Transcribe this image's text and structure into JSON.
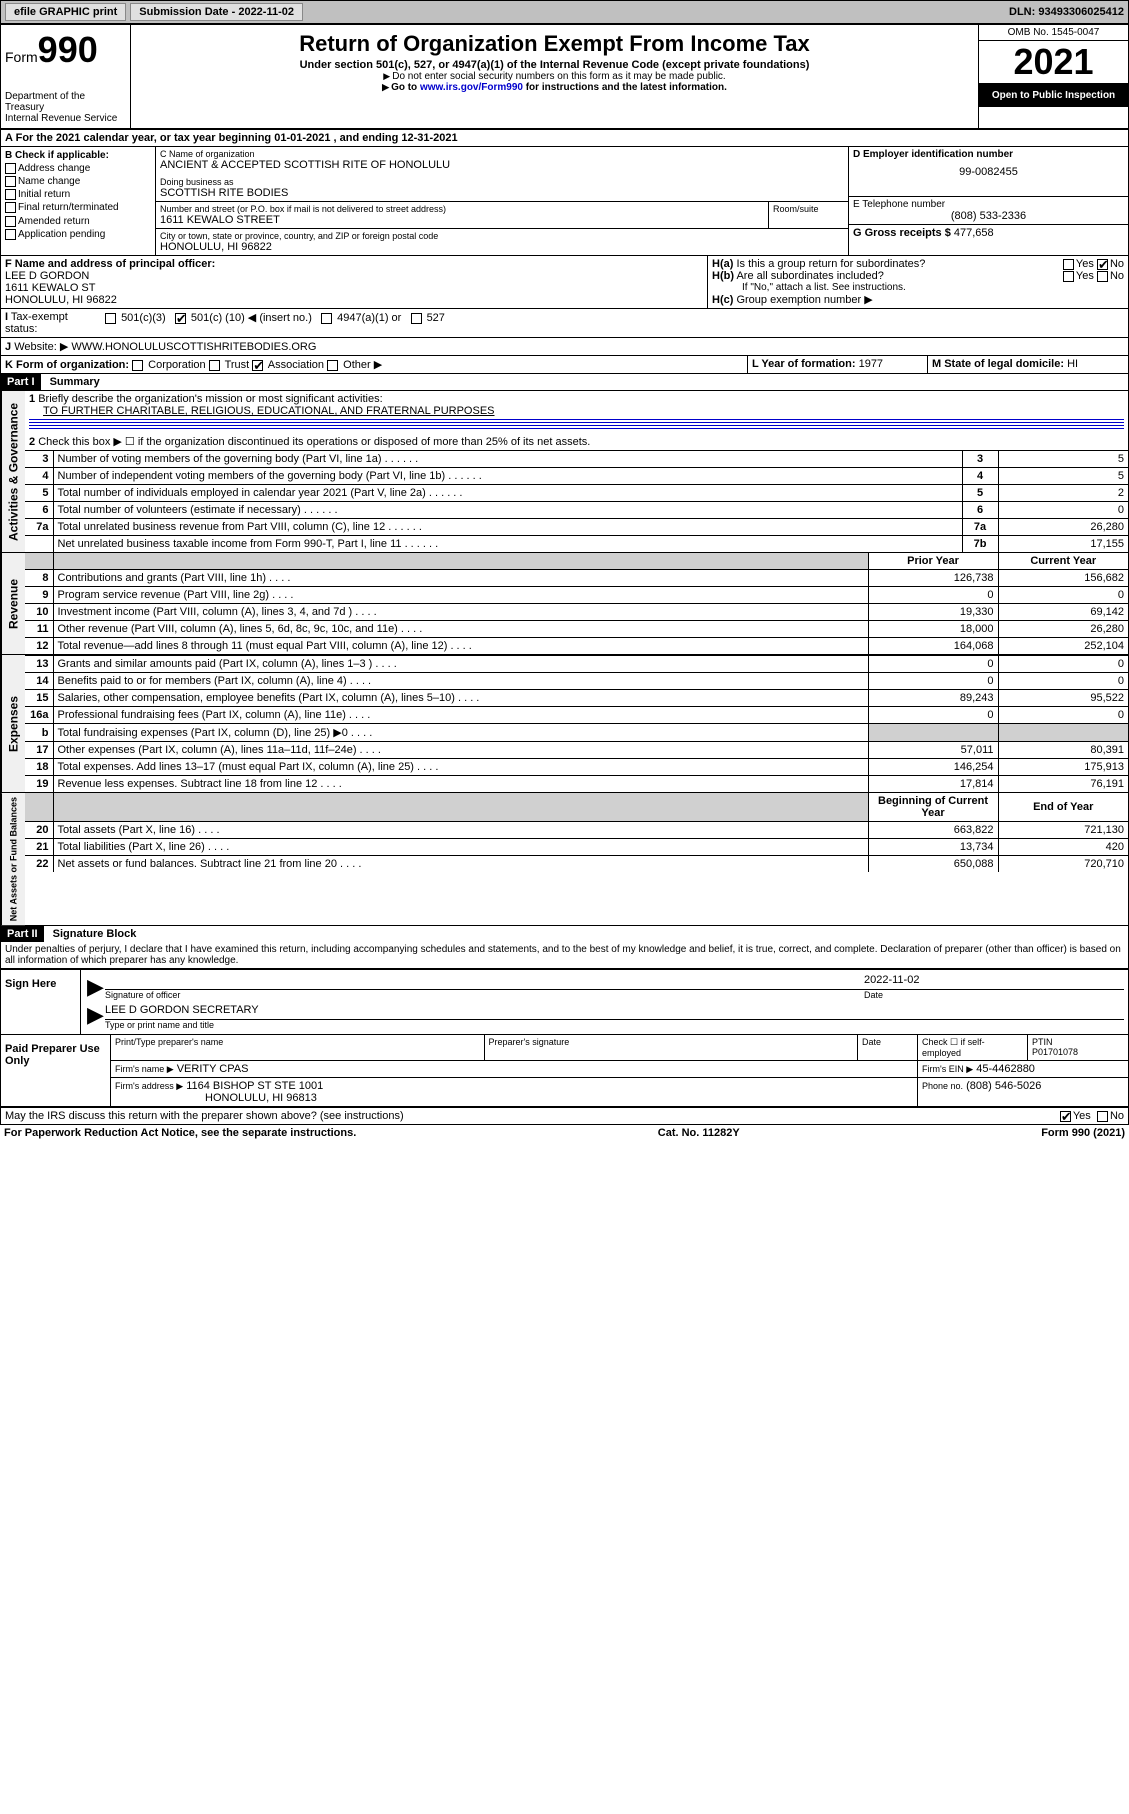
{
  "top": {
    "efile": "efile GRAPHIC print",
    "subdate_label": "Submission Date - ",
    "subdate": "2022-11-02",
    "dln_label": "DLN: ",
    "dln": "93493306025412"
  },
  "header": {
    "form_word": "Form",
    "form_num": "990",
    "dept": "Department of the Treasury",
    "irs": "Internal Revenue Service",
    "title": "Return of Organization Exempt From Income Tax",
    "sub": "Under section 501(c), 527, or 4947(a)(1) of the Internal Revenue Code (except private foundations)",
    "note1": "Do not enter social security numbers on this form as it may be made public.",
    "note2_pre": "Go to ",
    "note2_link": "www.irs.gov/Form990",
    "note2_post": " for instructions and the latest information.",
    "omb": "OMB No. 1545-0047",
    "year": "2021",
    "open": "Open to Public Inspection"
  },
  "A": {
    "text": "For the 2021 calendar year, or tax year beginning ",
    "begin": "01-01-2021",
    "mid": " , and ending ",
    "end": "12-31-2021"
  },
  "B": {
    "label": "B Check if applicable:",
    "items": [
      "Address change",
      "Name change",
      "Initial return",
      "Final return/terminated",
      "Amended return",
      "Application pending"
    ]
  },
  "C": {
    "label": "C Name of organization",
    "name": "ANCIENT & ACCEPTED SCOTTISH RITE OF HONOLULU",
    "dba_label": "Doing business as",
    "dba": "SCOTTISH RITE BODIES",
    "street_label": "Number and street (or P.O. box if mail is not delivered to street address)",
    "street": "1611 KEWALO STREET",
    "room_label": "Room/suite",
    "city_label": "City or town, state or province, country, and ZIP or foreign postal code",
    "city": "HONOLULU, HI  96822"
  },
  "D": {
    "label": "D Employer identification number",
    "value": "99-0082455"
  },
  "E": {
    "label": "E Telephone number",
    "value": "(808) 533-2336"
  },
  "G": {
    "label": "G Gross receipts $",
    "value": "477,658"
  },
  "F": {
    "label": "F Name and address of principal officer:",
    "name": "LEE D GORDON",
    "street": "1611 KEWALO ST",
    "city": "HONOLULU, HI  96822"
  },
  "H": {
    "a": "Is this a group return for subordinates?",
    "a_yes": "Yes",
    "a_no": "No",
    "b": "Are all subordinates included?",
    "b_note": "If \"No,\" attach a list. See instructions.",
    "c": "Group exemption number ▶"
  },
  "I": {
    "label": "Tax-exempt status:",
    "o1": "501(c)(3)",
    "o2_pre": "501(c) (",
    "o2_num": "10",
    "o2_post": ") ◀ (insert no.)",
    "o3": "4947(a)(1) or",
    "o4": "527"
  },
  "J": {
    "label": "Website: ▶",
    "value": "WWW.HONOLULUSCOTTISHRITEBODIES.ORG"
  },
  "K": {
    "label": "K Form of organization:",
    "o1": "Corporation",
    "o2": "Trust",
    "o3": "Association",
    "o4": "Other ▶"
  },
  "L": {
    "label": "L Year of formation:",
    "value": "1977"
  },
  "M": {
    "label": "M State of legal domicile:",
    "value": "HI"
  },
  "partI": {
    "header": "Part I",
    "title": "Summary",
    "q1": "Briefly describe the organization's mission or most significant activities:",
    "q1_val": "TO FURTHER CHARITABLE, RELIGIOUS, EDUCATIONAL, AND FRATERNAL PURPOSES",
    "q2": "Check this box ▶ ☐  if the organization discontinued its operations or disposed of more than 25% of its net assets."
  },
  "gov_rows": [
    {
      "n": "3",
      "desc": "Number of voting members of the governing body (Part VI, line 1a)",
      "box": "3",
      "val": "5"
    },
    {
      "n": "4",
      "desc": "Number of independent voting members of the governing body (Part VI, line 1b)",
      "box": "4",
      "val": "5"
    },
    {
      "n": "5",
      "desc": "Total number of individuals employed in calendar year 2021 (Part V, line 2a)",
      "box": "5",
      "val": "2"
    },
    {
      "n": "6",
      "desc": "Total number of volunteers (estimate if necessary)",
      "box": "6",
      "val": "0"
    },
    {
      "n": "7a",
      "desc": "Total unrelated business revenue from Part VIII, column (C), line 12",
      "box": "7a",
      "val": "26,280"
    },
    {
      "n": "",
      "desc": "Net unrelated business taxable income from Form 990-T, Part I, line 11",
      "box": "7b",
      "val": "17,155"
    }
  ],
  "two_col_header": {
    "prior": "Prior Year",
    "current": "Current Year"
  },
  "rev_rows": [
    {
      "n": "8",
      "desc": "Contributions and grants (Part VIII, line 1h)",
      "prior": "126,738",
      "cur": "156,682"
    },
    {
      "n": "9",
      "desc": "Program service revenue (Part VIII, line 2g)",
      "prior": "0",
      "cur": "0"
    },
    {
      "n": "10",
      "desc": "Investment income (Part VIII, column (A), lines 3, 4, and 7d )",
      "prior": "19,330",
      "cur": "69,142"
    },
    {
      "n": "11",
      "desc": "Other revenue (Part VIII, column (A), lines 5, 6d, 8c, 9c, 10c, and 11e)",
      "prior": "18,000",
      "cur": "26,280"
    },
    {
      "n": "12",
      "desc": "Total revenue—add lines 8 through 11 (must equal Part VIII, column (A), line 12)",
      "prior": "164,068",
      "cur": "252,104"
    }
  ],
  "exp_rows": [
    {
      "n": "13",
      "desc": "Grants and similar amounts paid (Part IX, column (A), lines 1–3 )",
      "prior": "0",
      "cur": "0"
    },
    {
      "n": "14",
      "desc": "Benefits paid to or for members (Part IX, column (A), line 4)",
      "prior": "0",
      "cur": "0"
    },
    {
      "n": "15",
      "desc": "Salaries, other compensation, employee benefits (Part IX, column (A), lines 5–10)",
      "prior": "89,243",
      "cur": "95,522"
    },
    {
      "n": "16a",
      "desc": "Professional fundraising fees (Part IX, column (A), line 11e)",
      "prior": "0",
      "cur": "0"
    },
    {
      "n": "b",
      "desc": "Total fundraising expenses (Part IX, column (D), line 25) ▶0",
      "prior": "shade",
      "cur": "shade"
    },
    {
      "n": "17",
      "desc": "Other expenses (Part IX, column (A), lines 11a–11d, 11f–24e)",
      "prior": "57,011",
      "cur": "80,391"
    },
    {
      "n": "18",
      "desc": "Total expenses. Add lines 13–17 (must equal Part IX, column (A), line 25)",
      "prior": "146,254",
      "cur": "175,913"
    },
    {
      "n": "19",
      "desc": "Revenue less expenses. Subtract line 18 from line 12",
      "prior": "17,814",
      "cur": "76,191"
    }
  ],
  "net_header": {
    "begin": "Beginning of Current Year",
    "end": "End of Year"
  },
  "net_rows": [
    {
      "n": "20",
      "desc": "Total assets (Part X, line 16)",
      "prior": "663,822",
      "cur": "721,130"
    },
    {
      "n": "21",
      "desc": "Total liabilities (Part X, line 26)",
      "prior": "13,734",
      "cur": "420"
    },
    {
      "n": "22",
      "desc": "Net assets or fund balances. Subtract line 21 from line 20",
      "prior": "650,088",
      "cur": "720,710"
    }
  ],
  "vlabels": {
    "gov": "Activities & Governance",
    "rev": "Revenue",
    "exp": "Expenses",
    "net": "Net Assets or Fund Balances"
  },
  "partII": {
    "header": "Part II",
    "title": "Signature Block",
    "decl": "Under penalties of perjury, I declare that I have examined this return, including accompanying schedules and statements, and to the best of my knowledge and belief, it is true, correct, and complete. Declaration of preparer (other than officer) is based on all information of which preparer has any knowledge."
  },
  "sign": {
    "here": "Sign Here",
    "sig_label": "Signature of officer",
    "date_label": "Date",
    "date": "2022-11-02",
    "name": "LEE D GORDON  SECRETARY",
    "name_label": "Type or print name and title"
  },
  "paid": {
    "label": "Paid Preparer Use Only",
    "c1": "Print/Type preparer's name",
    "c2": "Preparer's signature",
    "c3": "Date",
    "c4_pre": "Check ☐ if self-employed",
    "c5": "PTIN",
    "ptin": "P01701078",
    "firm_label": "Firm's name    ▶",
    "firm": "VERITY CPAS",
    "ein_label": "Firm's EIN ▶",
    "ein": "45-4462880",
    "addr_label": "Firm's address ▶",
    "addr1": "1164 BISHOP ST STE 1001",
    "addr2": "HONOLULU, HI  96813",
    "phone_label": "Phone no.",
    "phone": "(808) 546-5026"
  },
  "bottom": {
    "discuss": "May the IRS discuss this return with the preparer shown above? (see instructions)",
    "yes": "Yes",
    "no": "No",
    "pra": "For Paperwork Reduction Act Notice, see the separate instructions.",
    "cat": "Cat. No. 11282Y",
    "formrev": "Form 990 (2021)"
  }
}
